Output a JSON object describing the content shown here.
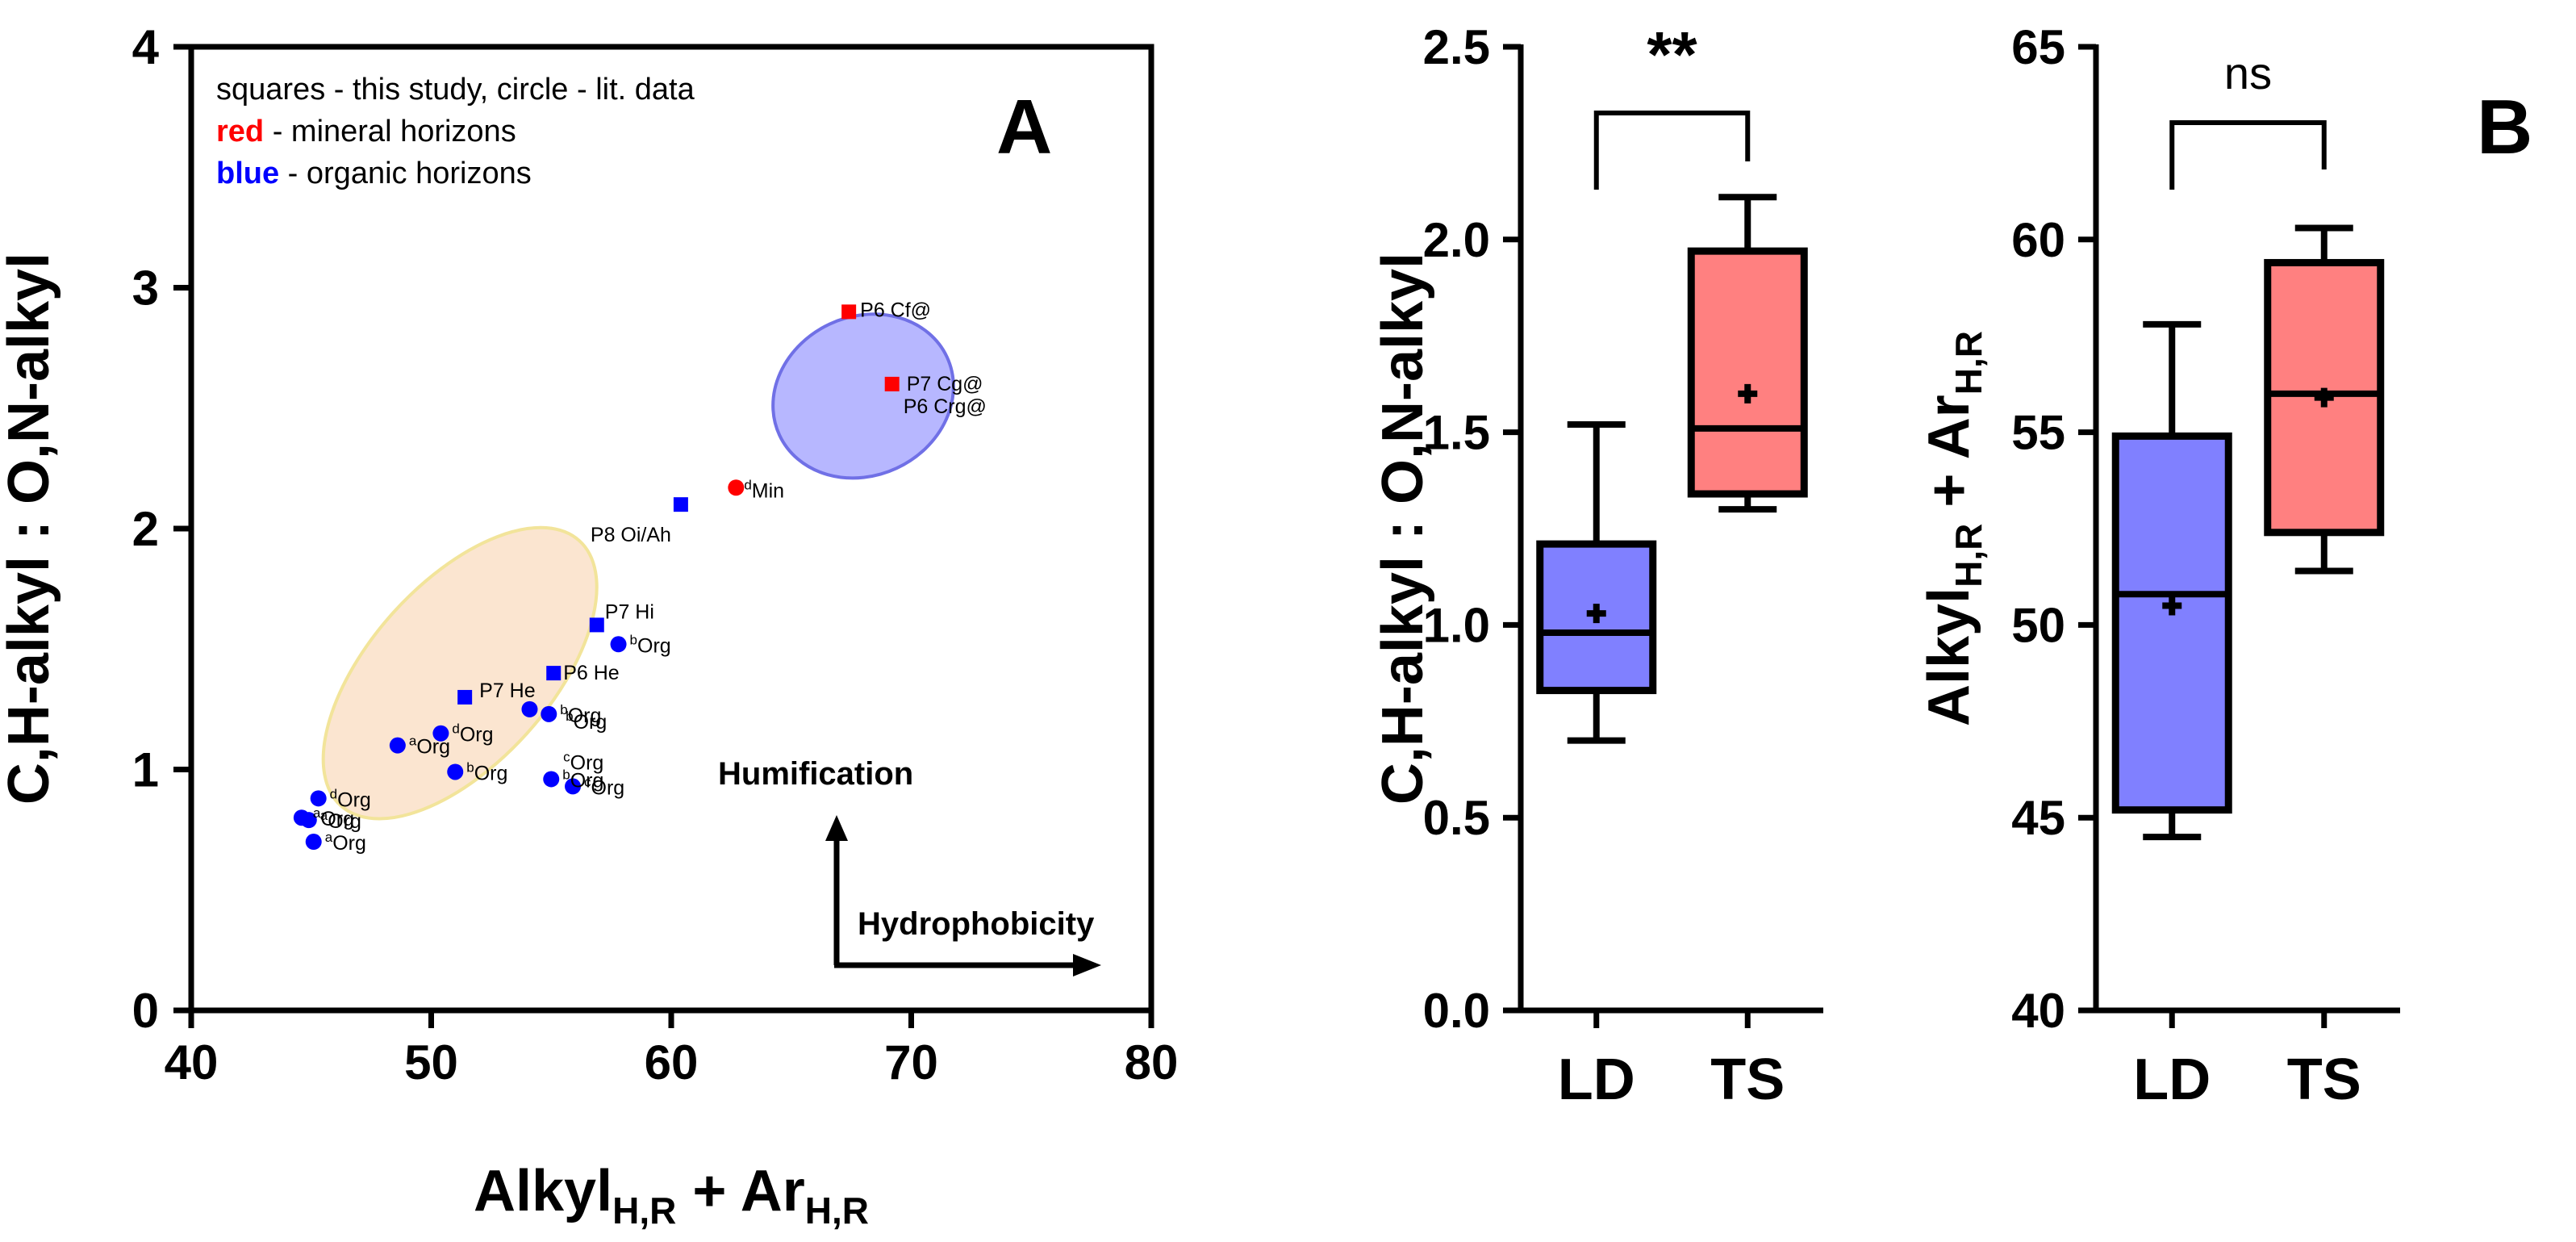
{
  "chart_data": [
    {
      "type": "scatter",
      "panel_label": "A",
      "xlim": [
        40,
        80
      ],
      "ylim": [
        0,
        4
      ],
      "xticks": [
        "40",
        "50",
        "60",
        "70",
        "80"
      ],
      "yticks": [
        "0",
        "1",
        "2",
        "3",
        "4"
      ],
      "xlabel": {
        "main": "Alkyl",
        "sub1": "H,R",
        "mid": " + Ar",
        "sub2": "H,R"
      },
      "ylabel": "C,H-alkyl : O,N-alkyl",
      "legend": [
        {
          "text": "squares - this study, circle - lit. data"
        },
        {
          "key": "red",
          "text": " - mineral horizons",
          "color": "#ff0000"
        },
        {
          "key": "blue",
          "text": " - organic horizons",
          "color": "#0000ff"
        }
      ],
      "annotations": {
        "humification": "Humification",
        "hydrophobicity": "Hydrophobicity"
      },
      "regions": [
        {
          "cx": 51.2,
          "cy": 1.4,
          "rx": 13.5,
          "ry": 0.68,
          "angle_deg": 48,
          "color": "#fbe5d0",
          "stroke": "#f2e49a"
        },
        {
          "cx": 68.0,
          "cy": 2.55,
          "rx": 7.0,
          "ry": 0.6,
          "angle_deg": 25,
          "color": "#b7b7ff",
          "stroke": "#7070e6"
        }
      ],
      "points": [
        {
          "x": 67.4,
          "y": 2.9,
          "marker": "square",
          "color": "#ff0000",
          "label": "P6 Cf@"
        },
        {
          "x": 69.2,
          "y": 2.6,
          "marker": "square",
          "color": "#ff0000",
          "label": "P7 Cg@"
        },
        {
          "x": 69.2,
          "y": 2.6,
          "marker": "none",
          "color": "#ff0000",
          "label": "P6 Crg@"
        },
        {
          "x": 62.7,
          "y": 2.17,
          "marker": "circle",
          "color": "#ff0000",
          "sup": "d",
          "label": "Min"
        },
        {
          "x": 60.4,
          "y": 2.1,
          "marker": "square",
          "color": "#0000ff",
          "label": "P8 Oi/Ah"
        },
        {
          "x": 56.9,
          "y": 1.6,
          "marker": "square",
          "color": "#0000ff",
          "label": "P7 Hi"
        },
        {
          "x": 57.8,
          "y": 1.52,
          "marker": "circle",
          "color": "#0000ff",
          "sup": "b",
          "label": "Org"
        },
        {
          "x": 55.1,
          "y": 1.4,
          "marker": "square",
          "color": "#0000ff",
          "label": "P6 He"
        },
        {
          "x": 51.4,
          "y": 1.3,
          "marker": "square",
          "color": "#0000ff",
          "label": "P7 He"
        },
        {
          "x": 54.1,
          "y": 1.25,
          "marker": "circle",
          "color": "#0000ff",
          "label": ""
        },
        {
          "x": 54.9,
          "y": 1.23,
          "marker": "circle",
          "color": "#0000ff",
          "sup": "b",
          "label": "Org"
        },
        {
          "x": 50.4,
          "y": 1.15,
          "marker": "circle",
          "color": "#0000ff",
          "sup": "d",
          "label": "Org"
        },
        {
          "x": 48.6,
          "y": 1.1,
          "marker": "circle",
          "color": "#0000ff",
          "sup": "a",
          "label": "Org"
        },
        {
          "x": 51.0,
          "y": 0.99,
          "marker": "circle",
          "color": "#0000ff",
          "sup": "b",
          "label": "Org"
        },
        {
          "x": 55.0,
          "y": 0.96,
          "marker": "circle",
          "color": "#0000ff",
          "sup": "b",
          "label": "Org"
        },
        {
          "x": 55.9,
          "y": 0.93,
          "marker": "circle",
          "color": "#0000ff",
          "sup": "c",
          "label": "Org"
        },
        {
          "x": 45.3,
          "y": 0.88,
          "marker": "circle",
          "color": "#0000ff",
          "sup": "d",
          "label": "Org"
        },
        {
          "x": 44.6,
          "y": 0.8,
          "marker": "circle",
          "color": "#0000ff",
          "sup": "a",
          "label": "Org"
        },
        {
          "x": 44.9,
          "y": 0.79,
          "marker": "circle",
          "color": "#0000ff",
          "sup": "a",
          "label": "Org"
        },
        {
          "x": 45.1,
          "y": 0.7,
          "marker": "circle",
          "color": "#0000ff",
          "sup": "a",
          "label": "Org"
        }
      ],
      "extra_labels": [
        {
          "x": 55.6,
          "y": 1.17,
          "sup": "b",
          "label": "Org"
        },
        {
          "x": 55.5,
          "y": 1.0,
          "sup": "c",
          "label": "Org"
        }
      ]
    },
    {
      "type": "box",
      "ylim": [
        0,
        2.5
      ],
      "yticks": [
        "0.0",
        "0.5",
        "1.0",
        "1.5",
        "2.0",
        "2.5"
      ],
      "ylabel": "C,H-alkyl : O,N-alkyl",
      "categories": [
        "LD",
        "TS"
      ],
      "boxes": [
        {
          "min": 0.7,
          "q1": 0.83,
          "median": 0.98,
          "q3": 1.21,
          "max": 1.52,
          "mean": 1.03,
          "color": "#8080ff"
        },
        {
          "min": 1.3,
          "q1": 1.34,
          "median": 1.51,
          "q3": 1.97,
          "max": 2.11,
          "mean": 1.6,
          "color": "#ff8080"
        }
      ],
      "significance": "**"
    },
    {
      "type": "box",
      "panel_label": "B",
      "ylim": [
        40,
        65
      ],
      "yticks": [
        "40",
        "45",
        "50",
        "55",
        "60",
        "65"
      ],
      "ylabel": {
        "main": "Alkyl",
        "sub1": "H,R",
        "mid": " + Ar",
        "sub2": "H,R"
      },
      "categories": [
        "LD",
        "TS"
      ],
      "boxes": [
        {
          "min": 44.5,
          "q1": 45.2,
          "median": 50.8,
          "q3": 54.9,
          "max": 57.8,
          "mean": 50.5,
          "color": "#8080ff"
        },
        {
          "min": 51.4,
          "q1": 52.4,
          "median": 56.0,
          "q3": 59.4,
          "max": 60.3,
          "mean": 55.9,
          "color": "#ff8080"
        }
      ],
      "significance": "ns"
    }
  ]
}
